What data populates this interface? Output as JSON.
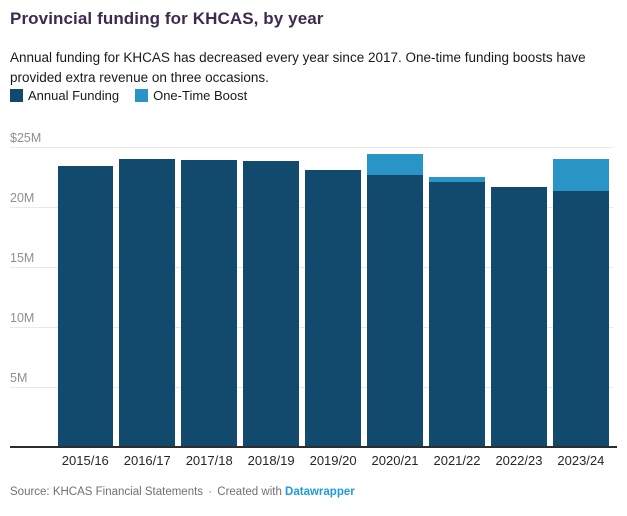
{
  "header": {
    "title": "Provincial funding for KHCAS, by year",
    "subtitle": "Annual funding for KHCAS has decreased every year since 2017. One-time funding boosts have provided extra revenue on three occasions."
  },
  "legend": [
    {
      "label": "Annual Funding",
      "color": "#114a6c"
    },
    {
      "label": "One-Time Boost",
      "color": "#2994c6"
    }
  ],
  "chart_data": {
    "type": "bar",
    "stacked": true,
    "title": "Provincial funding for KHCAS, by year",
    "xlabel": "",
    "ylabel": "",
    "ylim": [
      0,
      25
    ],
    "grid": true,
    "legend_position": "top-left",
    "categories": [
      "2015/16",
      "2016/17",
      "2017/18",
      "2018/19",
      "2019/20",
      "2020/21",
      "2021/22",
      "2022/23",
      "2023/24"
    ],
    "series": [
      {
        "name": "Annual Funding",
        "color": "#114a6c",
        "values": [
          23.4,
          24.0,
          23.9,
          23.8,
          23.1,
          22.7,
          22.1,
          21.7,
          21.3
        ]
      },
      {
        "name": "One-Time Boost",
        "color": "#2994c6",
        "values": [
          0,
          0,
          0,
          0,
          0,
          1.7,
          0.4,
          0,
          2.7
        ]
      }
    ],
    "yticks": [
      {
        "value": 25,
        "label": "$25M"
      },
      {
        "value": 20,
        "label": "20M"
      },
      {
        "value": 15,
        "label": "15M"
      },
      {
        "value": 10,
        "label": "10M"
      },
      {
        "value": 5,
        "label": "5M"
      }
    ]
  },
  "footer": {
    "source": "Source: KHCAS Financial Statements",
    "separator": "·",
    "created": "Created with",
    "link_label": "Datawrapper",
    "link_color": "#1e9bd7"
  }
}
